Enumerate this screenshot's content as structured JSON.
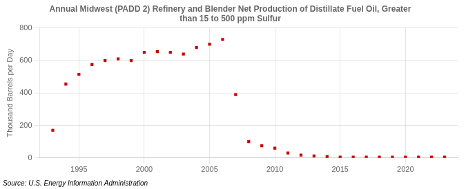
{
  "chart_data": {
    "type": "scatter",
    "title": "Annual Midwest (PADD 2) Refinery and Blender Net Production of Distillate Fuel Oil, Greater\nthan 15 to 500 ppm Sulfur",
    "ylabel": "Thousand Barrels per Day",
    "source": "Source: U.S. Energy Information Administration",
    "x": [
      1993,
      1994,
      1995,
      1996,
      1997,
      1998,
      1999,
      2000,
      2001,
      2002,
      2003,
      2004,
      2005,
      2006,
      2007,
      2008,
      2009,
      2010,
      2011,
      2012,
      2013,
      2014,
      2015,
      2016,
      2017,
      2018,
      2019,
      2020,
      2021,
      2022,
      2023
    ],
    "values": [
      170,
      455,
      515,
      575,
      600,
      610,
      600,
      650,
      655,
      650,
      640,
      680,
      700,
      730,
      390,
      100,
      75,
      60,
      30,
      18,
      12,
      8,
      5,
      5,
      5,
      5,
      5,
      5,
      5,
      5,
      5
    ],
    "color": "#cc0000",
    "marker": "square",
    "xlim": [
      1992,
      2024
    ],
    "xticks": [
      1995,
      2000,
      2005,
      2010,
      2015,
      2020
    ],
    "ylim": [
      0,
      800
    ],
    "yticks": [
      0,
      200,
      400,
      600,
      800
    ],
    "grid": true
  }
}
